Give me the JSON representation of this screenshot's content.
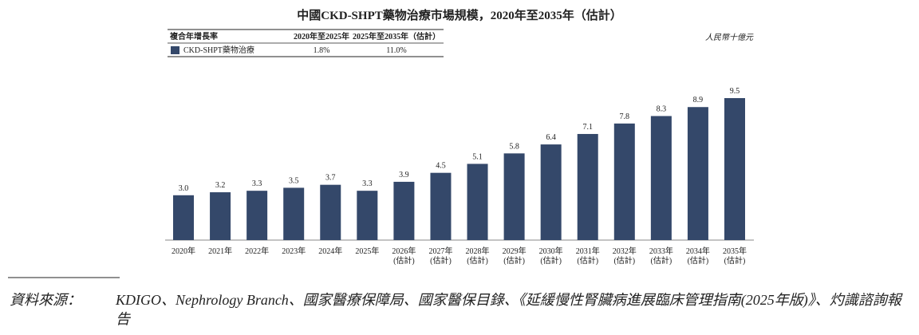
{
  "chart_data": {
    "type": "bar",
    "title": "中國CKD-SHPT藥物治療市場規模，2020年至2035年（估計）",
    "unit": "人民幣十億元",
    "cagr_table": {
      "header": [
        "複合年增長率",
        "2020年至2025年",
        "2025年至2035年（估計）"
      ],
      "rows": [
        [
          "CKD-SHPT藥物治療",
          "1.8%",
          "11.0%"
        ]
      ]
    },
    "categories": [
      [
        "2020年"
      ],
      [
        "2021年"
      ],
      [
        "2022年"
      ],
      [
        "2023年"
      ],
      [
        "2024年"
      ],
      [
        "2025年"
      ],
      [
        "2026年",
        "(估計)"
      ],
      [
        "2027年",
        "(估計)"
      ],
      [
        "2028年",
        "(估計)"
      ],
      [
        "2029年",
        "(估計)"
      ],
      [
        "2030年",
        "(估計)"
      ],
      [
        "2031年",
        "(估計)"
      ],
      [
        "2032年",
        "(估計)"
      ],
      [
        "2033年",
        "(估計)"
      ],
      [
        "2034年",
        "(估計)"
      ],
      [
        "2035年",
        "(估計)"
      ]
    ],
    "values": [
      3.0,
      3.2,
      3.3,
      3.5,
      3.7,
      3.3,
      3.9,
      4.5,
      5.1,
      5.8,
      6.4,
      7.1,
      7.8,
      8.3,
      8.9,
      9.5
    ],
    "value_labels": [
      "3.0",
      "3.2",
      "3.3",
      "3.5",
      "3.7",
      "3.3",
      "3.9",
      "4.5",
      "5.1",
      "5.8",
      "6.4",
      "7.1",
      "7.8",
      "8.3",
      "8.9",
      "9.5"
    ],
    "color": "#34486a"
  },
  "source": {
    "label": "資料來源：",
    "text": "KDIGO、Nephrology Branch、國家醫療保障局、國家醫保目錄、《延緩慢性腎臟病進展臨床管理指南(2025年版)》、灼識諮詢報告"
  }
}
